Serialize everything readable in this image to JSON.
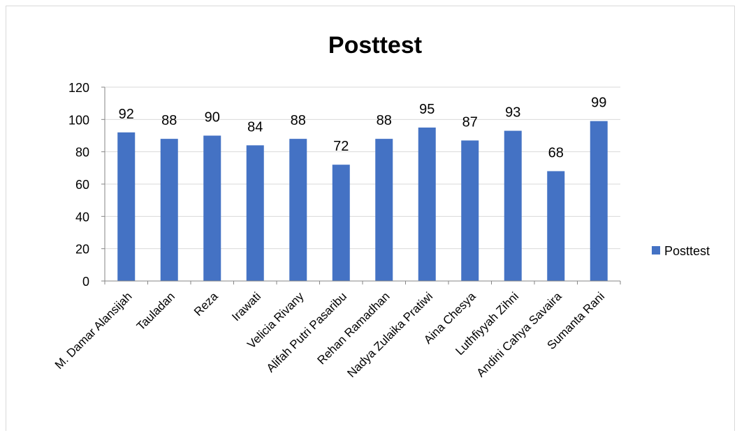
{
  "chart_data": {
    "type": "bar",
    "title": "Posttest",
    "categories": [
      "M. Damar Alansijah",
      "Tauladan",
      "Reza",
      "Irawati",
      "Velicia Rivany",
      "Alifah Putri Pasaribu",
      "Rehan Ramadhan",
      "Nadya Zulaika Pratiwi",
      "Aina Chesya",
      "Luthfiyyah Zihni",
      "Andini Cahya Savaira",
      "Sumanta Rani"
    ],
    "series": [
      {
        "name": "Posttest",
        "values": [
          92,
          88,
          90,
          84,
          88,
          72,
          88,
          95,
          87,
          93,
          68,
          99
        ],
        "color": "#4472C4"
      }
    ],
    "ylim": [
      0,
      120
    ],
    "yticks": [
      0,
      20,
      40,
      60,
      80,
      100,
      120
    ],
    "grid": true,
    "legend_position": "right",
    "data_labels": true
  }
}
